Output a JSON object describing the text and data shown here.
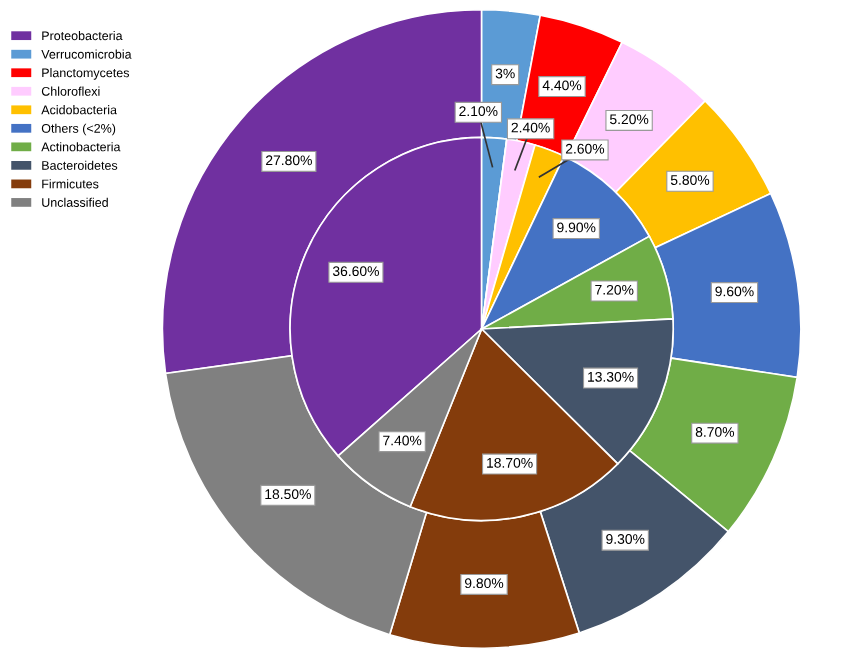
{
  "chart_data": {
    "type": "donut",
    "legend": "top left",
    "data_labels": true,
    "categories": [
      "Proteobacteria",
      "Verrucomicrobia",
      "Planctomycetes",
      "Chloroflexi",
      "Acidobacteria",
      "Others (<2%)",
      "Actinobacteria",
      "Bacteroidetes",
      "Firmicutes",
      "Unclassified"
    ],
    "colors": [
      "#7030a0",
      "#5b9bd5",
      "#ff0000",
      "#ffccff",
      "#ffc000",
      "#4472c4",
      "#70ad47",
      "#44546a",
      "#843c0c",
      "#808080"
    ],
    "series": [
      {
        "values": [
          27.8,
          3,
          4.4,
          5.2,
          5.8,
          9.6,
          8.7,
          9.3,
          9.8,
          18.5
        ],
        "value_labels": [
          "27.80%",
          "3%",
          "4.40%",
          "5.20%",
          "5.80%",
          "9.60%",
          "8.70%",
          "9.30%",
          "9.80%",
          "18.50%"
        ]
      },
      {
        "values": [
          36.6,
          2.1,
          null,
          2.4,
          2.6,
          9.9,
          7.2,
          13.3,
          18.7,
          7.4
        ],
        "value_labels": [
          "36.60%",
          "2.10%",
          null,
          "2.40%",
          "2.60%",
          "9.90%",
          "7.20%",
          "13.30%",
          "18.70%",
          "7.40%"
        ]
      }
    ]
  }
}
